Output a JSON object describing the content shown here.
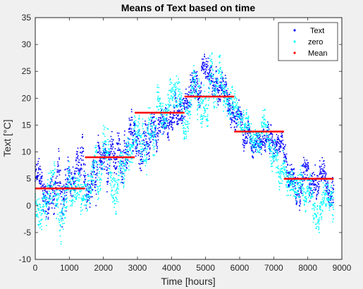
{
  "chart_data": {
    "type": "scatter",
    "title": "Means of Text based on time",
    "xlabel": "Time [hours]",
    "ylabel": "Text [°C]",
    "xlim": [
      0,
      9000
    ],
    "ylim": [
      -10,
      35
    ],
    "xticks": [
      0,
      1000,
      2000,
      3000,
      4000,
      5000,
      6000,
      7000,
      8000,
      9000
    ],
    "yticks": [
      -10,
      -5,
      0,
      5,
      10,
      15,
      20,
      25,
      30,
      35
    ],
    "grid": false,
    "legend_position": "top-right",
    "legend": [
      "Text",
      "zero",
      "Mean"
    ],
    "series": [
      {
        "name": "Text",
        "color": "#0000ff",
        "marker": "dot",
        "profile_x": [
          0,
          200,
          500,
          800,
          1100,
          1400,
          1700,
          2000,
          2300,
          2600,
          2900,
          3300,
          3600,
          3900,
          4200,
          4500,
          4800,
          5100,
          5400,
          5700,
          6000,
          6300,
          6600,
          6900,
          7200,
          7500,
          7800,
          8100,
          8400,
          8760
        ],
        "profile_y": [
          5,
          3,
          2,
          4,
          3,
          4,
          7,
          9,
          9,
          10,
          9,
          12,
          15,
          17,
          19,
          20,
          21,
          21,
          20,
          19,
          16,
          14,
          13,
          12,
          10,
          7,
          6,
          5,
          4,
          3
        ],
        "spread": [
          4,
          5,
          6,
          6,
          5,
          5,
          5,
          5,
          5,
          5,
          5,
          5,
          4,
          4,
          4,
          4,
          4,
          4,
          4,
          4,
          3,
          3,
          3,
          3,
          3,
          4,
          4,
          4,
          4,
          4
        ]
      },
      {
        "name": "zero",
        "color": "#00ffff",
        "marker": "dot",
        "profile_x": [
          0,
          200,
          500,
          800,
          1100,
          1400,
          1700,
          2000,
          2300,
          2600,
          2900,
          3300,
          3600,
          3900,
          4200,
          4500,
          4800,
          5100,
          5400,
          5700,
          6000,
          6300,
          6600,
          6900,
          7200,
          7500,
          7800,
          8100,
          8400,
          8760
        ],
        "profile_y": [
          3,
          1,
          1,
          2,
          2,
          3,
          6,
          7,
          8,
          9,
          9,
          14,
          18,
          19,
          21,
          21,
          22,
          21,
          21,
          20,
          15,
          13,
          12,
          11,
          9,
          4,
          3,
          3,
          2,
          1
        ],
        "spread": [
          4,
          5,
          6,
          6,
          5,
          5,
          5,
          6,
          5,
          5,
          5,
          6,
          5,
          5,
          5,
          5,
          6,
          6,
          5,
          5,
          4,
          4,
          4,
          4,
          4,
          4,
          4,
          4,
          4,
          4
        ]
      },
      {
        "name": "Mean",
        "color": "#ff0000",
        "marker": "line",
        "segments": [
          {
            "x": [
              0,
              1460
            ],
            "y": 3.2
          },
          {
            "x": [
              1460,
              2920
            ],
            "y": 9.0
          },
          {
            "x": [
              2920,
              4380
            ],
            "y": 17.3
          },
          {
            "x": [
              4380,
              5840
            ],
            "y": 20.3
          },
          {
            "x": [
              5840,
              7300
            ],
            "y": 13.8
          },
          {
            "x": [
              7300,
              8760
            ],
            "y": 5.0
          }
        ]
      }
    ]
  }
}
